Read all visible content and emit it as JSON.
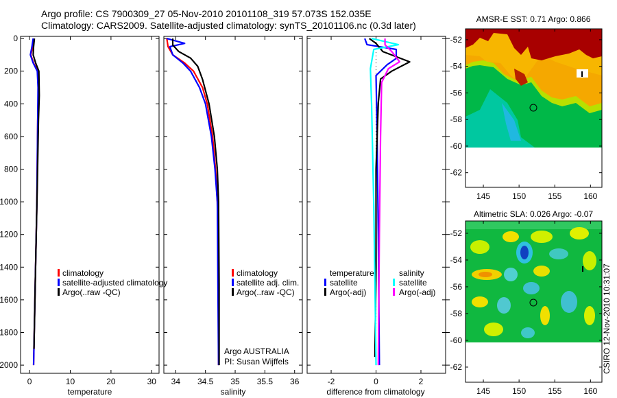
{
  "title": {
    "line1": "Argo profile: CS 7900309_27 05-Nov-2010 20101108_319 57.073S 152.035E",
    "line2": "Climatology: CARS2009. Satellite-adjusted climatology: synTS_20101106.nc (0.3d later)"
  },
  "colors": {
    "climatology": "#ff0000",
    "satellite": "#0000ff",
    "argo": "#000000",
    "sal_satellite": "#00ffff",
    "sal_argo": "#ff00ff"
  },
  "legend_temp": {
    "items": [
      "climatology",
      "satellite-adjusted climatology",
      "Argo(..raw -QC)"
    ]
  },
  "legend_sal": {
    "items": [
      "climatology",
      "satellite adj. clim.",
      "Argo(..raw -QC)"
    ]
  },
  "legend_diff": {
    "temp_header": "temperature",
    "sal_header": "salinity",
    "items": [
      "satellite",
      "Argo(-adj)",
      "satellite",
      "Argo(-adj)"
    ]
  },
  "credit": {
    "line1": "Argo AUSTRALIA",
    "line2": "PI: Susan Wijffels"
  },
  "timestamp": "CSIRO 12-Nov-2010 10:31:07",
  "maps": [
    {
      "title": "AMSR-E SST: 0.71 Argo: 0.866",
      "xticks": [
        "145",
        "150",
        "155",
        "160"
      ],
      "yticks": [
        "-52",
        "-54",
        "-56",
        "-58",
        "-60",
        "-62"
      ],
      "xlim": [
        142.5,
        161.6
      ],
      "ylim": [
        -51.18,
        -63.1
      ],
      "argo_lon": 152.035,
      "argo_lat": -57.073
    },
    {
      "title": "Altimetric SLA: 0.026 Argo: -0.07",
      "xticks": [
        "145",
        "150",
        "155",
        "160"
      ],
      "yticks": [
        "-52",
        "-54",
        "-56",
        "-58",
        "-60",
        "-62"
      ],
      "xlim": [
        142.5,
        161.6
      ],
      "ylim": [
        -51.08,
        -63.13
      ],
      "argo_lon": 152.035,
      "argo_lat": -57.073
    }
  ],
  "chart_data": [
    {
      "type": "line",
      "xlabel": "temperature",
      "ylabel": "",
      "xlim": [
        -2.2,
        31.8
      ],
      "ylim": [
        -13,
        2050
      ],
      "xticks": [
        "0",
        "10",
        "20",
        "30"
      ],
      "xtick_values": [
        0,
        10,
        20,
        30
      ],
      "yticks": [
        "0",
        "200",
        "400",
        "600",
        "800",
        "1000",
        "1200",
        "1400",
        "1600",
        "1800",
        "2000"
      ],
      "series": [
        {
          "name": "climatology",
          "color": "#ff0000",
          "points": [
            [
              1.0,
              0
            ],
            [
              0.8,
              50
            ],
            [
              0.3,
              100
            ],
            [
              1.0,
              150
            ],
            [
              2.0,
              200
            ],
            [
              2.2,
              300
            ],
            [
              2.0,
              500
            ],
            [
              1.8,
              1000
            ],
            [
              1.4,
              1500
            ],
            [
              1.0,
              2000
            ]
          ]
        },
        {
          "name": "satellite-adjusted climatology",
          "color": "#0000ff",
          "points": [
            [
              0.9,
              0
            ],
            [
              0.6,
              50
            ],
            [
              0.2,
              100
            ],
            [
              0.9,
              150
            ],
            [
              1.9,
              200
            ],
            [
              2.1,
              300
            ],
            [
              2.0,
              500
            ],
            [
              1.8,
              1000
            ],
            [
              1.4,
              1500
            ],
            [
              1.0,
              2000
            ]
          ]
        },
        {
          "name": "Argo(..raw -QC)",
          "color": "#000000",
          "points": [
            [
              1.2,
              0
            ],
            [
              1.0,
              50
            ],
            [
              0.9,
              100
            ],
            [
              1.5,
              150
            ],
            [
              2.3,
              200
            ],
            [
              2.4,
              350
            ],
            [
              2.2,
              500
            ],
            [
              1.9,
              900
            ],
            [
              1.4,
              1500
            ],
            [
              1.1,
              1900
            ]
          ]
        }
      ]
    },
    {
      "type": "line",
      "xlabel": "salinity",
      "ylabel": "",
      "xlim": [
        33.8,
        36.13
      ],
      "ylim": [
        -13,
        2050
      ],
      "xticks": [
        "34",
        "34.5",
        "35",
        "35.5",
        "36"
      ],
      "xtick_values": [
        34,
        34.5,
        35,
        35.5,
        36
      ],
      "series": [
        {
          "name": "climatology",
          "color": "#ff0000",
          "points": [
            [
              33.85,
              0
            ],
            [
              33.87,
              50
            ],
            [
              33.95,
              100
            ],
            [
              34.15,
              150
            ],
            [
              34.3,
              200
            ],
            [
              34.45,
              300
            ],
            [
              34.53,
              400
            ],
            [
              34.62,
              600
            ],
            [
              34.67,
              800
            ],
            [
              34.7,
              1000
            ],
            [
              34.72,
              1500
            ],
            [
              34.72,
              2000
            ]
          ]
        },
        {
          "name": "satellite adj. clim.",
          "color": "#0000ff",
          "points": [
            [
              33.85,
              0
            ],
            [
              34.15,
              30
            ],
            [
              33.9,
              50
            ],
            [
              33.95,
              100
            ],
            [
              34.12,
              150
            ],
            [
              34.25,
              200
            ],
            [
              34.4,
              300
            ],
            [
              34.5,
              400
            ],
            [
              34.6,
              600
            ],
            [
              34.66,
              800
            ],
            [
              34.7,
              1000
            ],
            [
              34.72,
              2000
            ]
          ]
        },
        {
          "name": "Argo(..raw -QC)",
          "color": "#000000",
          "points": [
            [
              33.95,
              0
            ],
            [
              33.95,
              40
            ],
            [
              34.05,
              80
            ],
            [
              34.25,
              120
            ],
            [
              34.37,
              170
            ],
            [
              34.45,
              250
            ],
            [
              34.56,
              400
            ],
            [
              34.65,
              600
            ],
            [
              34.7,
              800
            ],
            [
              34.72,
              1000
            ],
            [
              34.73,
              1500
            ],
            [
              34.73,
              2000
            ]
          ]
        }
      ]
    },
    {
      "type": "line",
      "xlabel": "difference from climatology",
      "ylabel": "",
      "xlim": [
        -3.07,
        3.1
      ],
      "ylim": [
        -13,
        2050
      ],
      "xticks": [
        "-2",
        "0",
        "2"
      ],
      "xtick_values": [
        -2,
        0,
        2
      ],
      "series": [
        {
          "name": "temperature satellite",
          "color": "#0000ff",
          "points": [
            [
              -0.5,
              0
            ],
            [
              -0.4,
              38
            ],
            [
              0.9,
              67
            ],
            [
              0.9,
              122
            ],
            [
              0.5,
              160
            ],
            [
              0.0,
              227
            ],
            [
              0.05,
              600
            ],
            [
              0.1,
              1200
            ],
            [
              0.15,
              2000
            ]
          ]
        },
        {
          "name": "temperature Argo(-adj)",
          "color": "#000000",
          "points": [
            [
              -0.3,
              0
            ],
            [
              0.0,
              30
            ],
            [
              0.3,
              80
            ],
            [
              1.5,
              143
            ],
            [
              0.7,
              200
            ],
            [
              0.2,
              248
            ],
            [
              0.1,
              395
            ],
            [
              0.0,
              800
            ],
            [
              0.0,
              1400
            ],
            [
              -0.05,
              1950
            ]
          ]
        },
        {
          "name": "salinity satellite",
          "color": "#00ffff",
          "points": [
            [
              -0.2,
              0
            ],
            [
              1.0,
              38
            ],
            [
              -0.1,
              67
            ],
            [
              -0.25,
              185
            ],
            [
              -0.2,
              400
            ],
            [
              -0.1,
              1025
            ],
            [
              -0.05,
              1500
            ],
            [
              0.0,
              2000
            ]
          ]
        },
        {
          "name": "salinity Argo(-adj)",
          "color": "#ff00ff",
          "points": [
            [
              0.4,
              0
            ],
            [
              0.4,
              38
            ],
            [
              0.7,
              80
            ],
            [
              1.05,
              143
            ],
            [
              0.55,
              185
            ],
            [
              0.25,
              269
            ],
            [
              0.2,
              600
            ],
            [
              0.15,
              1200
            ],
            [
              0.1,
              2000
            ]
          ]
        }
      ]
    }
  ]
}
